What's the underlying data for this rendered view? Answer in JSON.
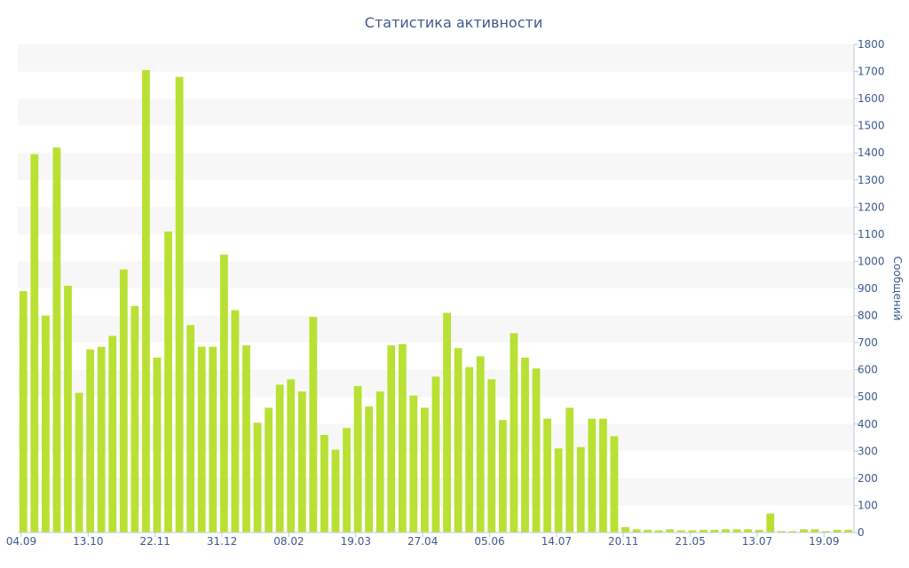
{
  "chart_data": {
    "type": "bar",
    "title": "Статистика активности",
    "xlabel": "",
    "ylabel": "Сообщений",
    "ylim": [
      0,
      1800
    ],
    "y_ticks": [
      0,
      100,
      200,
      300,
      400,
      500,
      600,
      700,
      800,
      900,
      1000,
      1100,
      1200,
      1300,
      1400,
      1500,
      1600,
      1700,
      1800
    ],
    "y_axis_side": "right",
    "x_tick_labels": [
      {
        "label": "04.09",
        "index": 0
      },
      {
        "label": "13.10",
        "index": 6
      },
      {
        "label": "22.11",
        "index": 12
      },
      {
        "label": "31.12",
        "index": 18
      },
      {
        "label": "08.02",
        "index": 24
      },
      {
        "label": "19.03",
        "index": 30
      },
      {
        "label": "27.04",
        "index": 36
      },
      {
        "label": "05.06",
        "index": 42
      },
      {
        "label": "14.07",
        "index": 48
      },
      {
        "label": "20.11",
        "index": 54
      },
      {
        "label": "21.05",
        "index": 60
      },
      {
        "label": "13.07",
        "index": 66
      },
      {
        "label": "19.09",
        "index": 72
      }
    ],
    "values": [
      890,
      1395,
      800,
      1420,
      910,
      515,
      675,
      685,
      725,
      970,
      835,
      1705,
      645,
      1110,
      1680,
      765,
      685,
      685,
      1025,
      820,
      690,
      405,
      460,
      545,
      565,
      520,
      795,
      360,
      305,
      385,
      540,
      465,
      520,
      690,
      695,
      505,
      460,
      575,
      810,
      680,
      610,
      650,
      565,
      415,
      735,
      645,
      605,
      420,
      310,
      460,
      315,
      420,
      420,
      355,
      20,
      12,
      10,
      8,
      12,
      8,
      8,
      10,
      10,
      12,
      12,
      12,
      10,
      70,
      5,
      5,
      12,
      12,
      5,
      10,
      10
    ],
    "grid": true,
    "grid_style": "alternating horizontal bands",
    "legend": "none",
    "colors": {
      "bar": "#b8e133",
      "band": "#f7f7f7",
      "text": "#3e5a8c",
      "axis": "#c0c8d8"
    }
  }
}
